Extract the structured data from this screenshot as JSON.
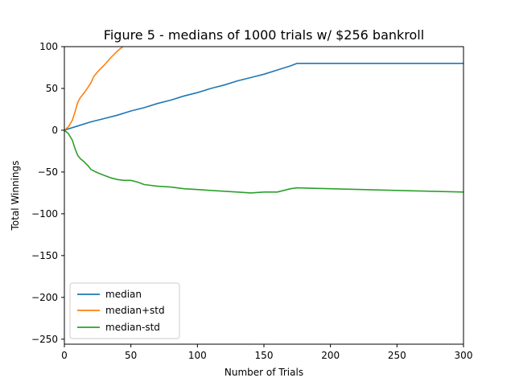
{
  "chart_data": {
    "type": "line",
    "title": "Figure 5 - medians of 1000 trials w/ $256 bankroll",
    "xlabel": "Number of Trials",
    "ylabel": "Total Winnings",
    "xlim": [
      0,
      300
    ],
    "ylim": [
      -256,
      100
    ],
    "xticks": [
      0,
      50,
      100,
      150,
      200,
      250,
      300
    ],
    "yticks": [
      100,
      50,
      0,
      -50,
      -100,
      -150,
      -200,
      -250
    ],
    "xtick_labels": [
      "0",
      "50",
      "100",
      "150",
      "200",
      "250",
      "300"
    ],
    "ytick_labels": [
      "100",
      "50",
      "0",
      "−50",
      "−100",
      "−150",
      "−200",
      "−250"
    ],
    "grid": false,
    "legend_position": "lower-left",
    "series": [
      {
        "name": "median",
        "color": "#1f77b4",
        "x": [
          0,
          10,
          20,
          30,
          40,
          50,
          60,
          70,
          80,
          90,
          100,
          110,
          120,
          130,
          140,
          150,
          160,
          170,
          175,
          200,
          250,
          300
        ],
        "y": [
          0,
          5,
          10,
          14,
          18,
          23,
          27,
          32,
          36,
          41,
          45,
          50,
          54,
          59,
          63,
          67,
          72,
          77,
          80,
          80,
          80,
          80
        ]
      },
      {
        "name": "median+std",
        "color": "#ff7f0e",
        "x": [
          0,
          3,
          6,
          8,
          10,
          12,
          15,
          18,
          20,
          22,
          25,
          30,
          35,
          40,
          44
        ],
        "y": [
          0,
          4,
          12,
          22,
          33,
          39,
          45,
          52,
          57,
          64,
          70,
          78,
          87,
          95,
          100
        ]
      },
      {
        "name": "median-std",
        "color": "#2ca02c",
        "x": [
          0,
          3,
          6,
          8,
          10,
          12,
          15,
          18,
          20,
          25,
          30,
          35,
          40,
          45,
          50,
          55,
          60,
          70,
          80,
          90,
          100,
          110,
          120,
          130,
          140,
          150,
          160,
          170,
          175,
          200,
          250,
          300
        ],
        "y": [
          0,
          -4,
          -12,
          -22,
          -30,
          -34,
          -38,
          -43,
          -47,
          -51,
          -54,
          -57,
          -59,
          -60,
          -60,
          -62,
          -65,
          -67,
          -68,
          -70,
          -71,
          -72,
          -73,
          -74,
          -75,
          -74,
          -74,
          -70,
          -69,
          -70,
          -72,
          -74
        ]
      }
    ]
  }
}
